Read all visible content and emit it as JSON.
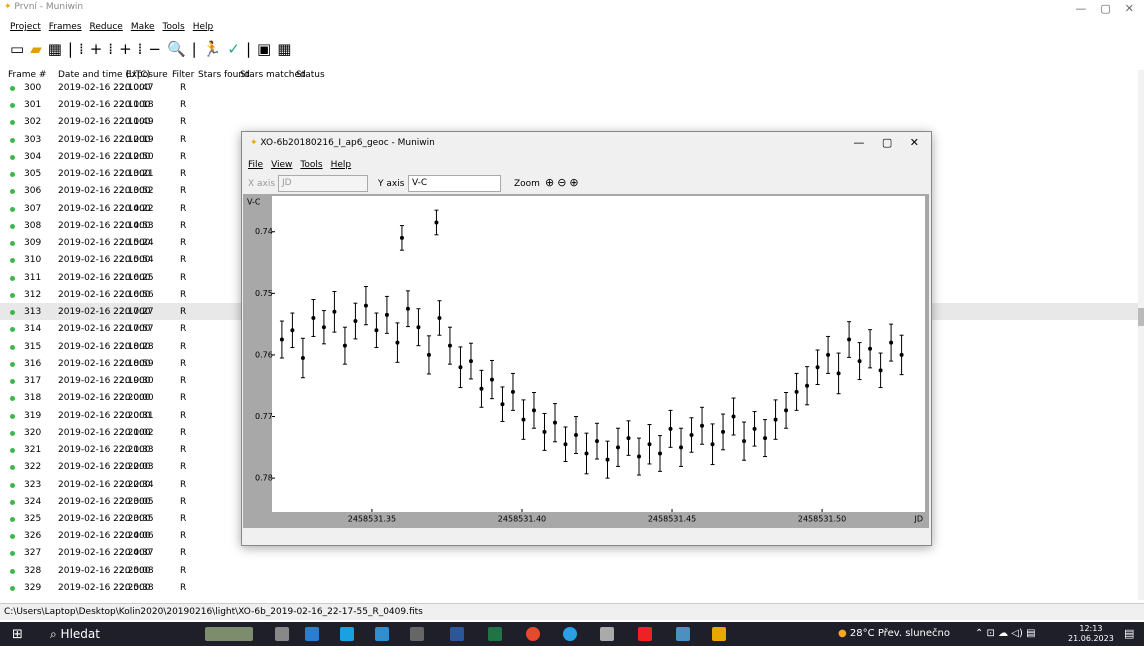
{
  "main_window": {
    "title": "První - Muniwin",
    "menu": [
      "Project",
      "Frames",
      "Reduce",
      "Make",
      "Tools",
      "Help"
    ],
    "table": {
      "columns": [
        "Frame #",
        "Date and time (UTC)",
        "Exposure",
        "Filter",
        "Stars found",
        "Stars matched",
        "Status"
      ],
      "rows": [
        [
          "300",
          "2019-02-16 22:10:47",
          "20.000",
          "R"
        ],
        [
          "301",
          "2019-02-16 22:11:18",
          "20.000",
          "R"
        ],
        [
          "302",
          "2019-02-16 22:11:49",
          "20.000",
          "R"
        ],
        [
          "303",
          "2019-02-16 22:12:19",
          "20.000",
          "R"
        ],
        [
          "304",
          "2019-02-16 22:12:50",
          "20.000",
          "R"
        ],
        [
          "305",
          "2019-02-16 22:13:21",
          "20.000",
          "R"
        ],
        [
          "306",
          "2019-02-16 22:13:52",
          "20.000",
          "R"
        ],
        [
          "307",
          "2019-02-16 22:14:22",
          "20.000",
          "R"
        ],
        [
          "308",
          "2019-02-16 22:14:53",
          "20.000",
          "R"
        ],
        [
          "309",
          "2019-02-16 22:15:24",
          "20.000",
          "R"
        ],
        [
          "310",
          "2019-02-16 22:15:54",
          "20.000",
          "R"
        ],
        [
          "311",
          "2019-02-16 22:16:25",
          "20.000",
          "R"
        ],
        [
          "312",
          "2019-02-16 22:16:56",
          "20.000",
          "R"
        ],
        [
          "313",
          "2019-02-16 22:17:27",
          "20.000",
          "R"
        ],
        [
          "314",
          "2019-02-16 22:17:57",
          "20.000",
          "R"
        ],
        [
          "315",
          "2019-02-16 22:18:28",
          "20.000",
          "R"
        ],
        [
          "316",
          "2019-02-16 22:18:59",
          "20.000",
          "R"
        ],
        [
          "317",
          "2019-02-16 22:19:30",
          "20.000",
          "R"
        ],
        [
          "318",
          "2019-02-16 22:20:00",
          "20.000",
          "R"
        ],
        [
          "319",
          "2019-02-16 22:20:31",
          "20.000",
          "R"
        ],
        [
          "320",
          "2019-02-16 22:21:02",
          "20.000",
          "R"
        ],
        [
          "321",
          "2019-02-16 22:21:33",
          "20.000",
          "R"
        ],
        [
          "322",
          "2019-02-16 22:22:03",
          "20.000",
          "R"
        ],
        [
          "323",
          "2019-02-16 22:22:34",
          "20.000",
          "R"
        ],
        [
          "324",
          "2019-02-16 22:23:05",
          "20.000",
          "R"
        ],
        [
          "325",
          "2019-02-16 22:23:35",
          "20.000",
          "R"
        ],
        [
          "326",
          "2019-02-16 22:24:06",
          "20.000",
          "R"
        ],
        [
          "327",
          "2019-02-16 22:24:37",
          "20.000",
          "R"
        ],
        [
          "328",
          "2019-02-16 22:25:08",
          "20.000",
          "R"
        ],
        [
          "329",
          "2019-02-16 22:25:38",
          "20.000",
          "R"
        ]
      ]
    },
    "status_bar": "C:\\Users\\Laptop\\Desktop\\Kolin2020\\20190216\\light\\XO-6b_2019-02-16_22-17-55_R_0409.fits"
  },
  "dialog": {
    "title": "XO-6b20180216_I_ap6_geoc - Muniwin",
    "menu": [
      "File",
      "View",
      "Tools",
      "Help"
    ],
    "x_axis_label": "X axis",
    "x_axis_value": "JD",
    "y_axis_label": "Y axis",
    "y_axis_value": "V-C",
    "zoom_label": "Zoom",
    "plot": {
      "type": "scatter",
      "y_label": "V-C",
      "x_label": "JD",
      "color": "#000000",
      "inverted_y": true,
      "xlim": [
        2458531.3167,
        2458531.5343
      ],
      "ylim": [
        0.7342,
        0.7855
      ],
      "xticks": [
        2458531.35,
        {
          "value": 2458531.4,
          "label": "2458531.40"
        },
        2458531.45,
        {
          "value": 2458531.5,
          "label": "2458531.50"
        }
      ],
      "yticks": [
        0.74,
        0.75,
        0.76,
        0.77,
        0.78
      ],
      "x": [
        2458531.32,
        2458531.3235,
        2458531.327,
        2458531.3305,
        2458531.334,
        2458531.3375,
        2458531.341,
        2458531.3445,
        2458531.348,
        2458531.3515,
        2458531.355,
        2458531.3585,
        2458531.362,
        2458531.3655,
        2458531.369,
        2458531.3725,
        2458531.376,
        2458531.3795,
        2458531.383,
        2458531.3865,
        2458531.39,
        2458531.3935,
        2458531.397,
        2458531.4005,
        2458531.404,
        2458531.4075,
        2458531.411,
        2458531.4145,
        2458531.418,
        2458531.4215,
        2458531.425,
        2458531.4285,
        2458531.432,
        2458531.4355,
        2458531.439,
        2458531.4425,
        2458531.446,
        2458531.4495,
        2458531.453,
        2458531.4565,
        2458531.46,
        2458531.4635,
        2458531.467,
        2458531.4705,
        2458531.474,
        2458531.4775,
        2458531.481,
        2458531.4845,
        2458531.488,
        2458531.4915,
        2458531.495,
        2458531.4985,
        2458531.502,
        2458531.5055,
        2458531.509,
        2458531.5125,
        2458531.516,
        2458531.5195,
        2458531.523,
        2458531.5265,
        2458531.36,
        2458531.3715
      ],
      "values": [
        0.7575,
        0.756,
        0.7605,
        0.754,
        0.7555,
        0.753,
        0.7585,
        0.7545,
        0.752,
        0.756,
        0.7535,
        0.758,
        0.7525,
        0.7555,
        0.76,
        0.754,
        0.7585,
        0.762,
        0.761,
        0.7655,
        0.764,
        0.768,
        0.766,
        0.7705,
        0.769,
        0.7725,
        0.771,
        0.7745,
        0.773,
        0.776,
        0.774,
        0.777,
        0.775,
        0.7735,
        0.7765,
        0.7745,
        0.776,
        0.772,
        0.775,
        0.773,
        0.7715,
        0.7745,
        0.7725,
        0.77,
        0.774,
        0.772,
        0.7735,
        0.7705,
        0.769,
        0.766,
        0.765,
        0.762,
        0.76,
        0.763,
        0.7575,
        0.761,
        0.759,
        0.7625,
        0.758,
        0.76,
        0.741,
        0.7385
      ],
      "errors": [
        0.003,
        0.0028,
        0.0032,
        0.003,
        0.0027,
        0.0033,
        0.003,
        0.0029,
        0.0031,
        0.0028,
        0.003,
        0.0032,
        0.0029,
        0.003,
        0.0031,
        0.0028,
        0.003,
        0.0033,
        0.0029,
        0.003,
        0.0031,
        0.0028,
        0.003,
        0.0032,
        0.0029,
        0.003,
        0.0031,
        0.0028,
        0.003,
        0.0033,
        0.0029,
        0.003,
        0.0031,
        0.0028,
        0.003,
        0.0032,
        0.0029,
        0.003,
        0.0031,
        0.0028,
        0.003,
        0.0033,
        0.0029,
        0.003,
        0.0031,
        0.0028,
        0.003,
        0.0032,
        0.0029,
        0.003,
        0.0031,
        0.0028,
        0.003,
        0.0033,
        0.0029,
        0.003,
        0.0031,
        0.0028,
        0.003,
        0.0032,
        0.002,
        0.002
      ]
    }
  },
  "taskbar": {
    "search": "Hledat",
    "temperature": "28°C",
    "weather": "Přev. slunečno",
    "time": "12:13",
    "date": "21.06.2023"
  }
}
